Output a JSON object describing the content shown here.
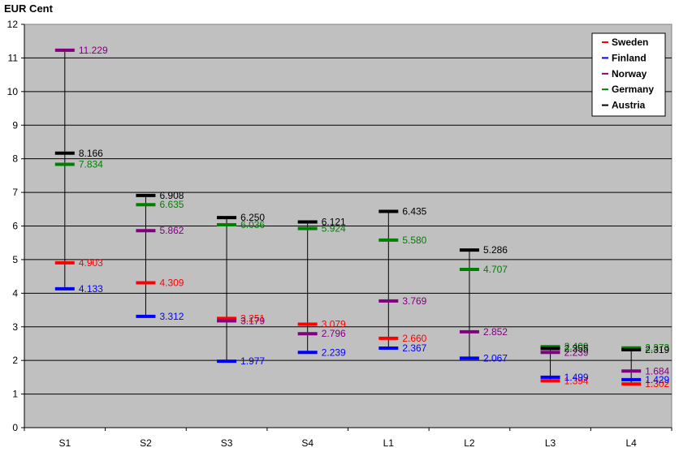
{
  "chart_data": {
    "type": "scatter",
    "ylabel": "EUR Cent",
    "ylim": [
      0,
      12
    ],
    "yticks": [
      "0",
      "1",
      "2",
      "3",
      "4",
      "5",
      "6",
      "7",
      "8",
      "9",
      "10",
      "11",
      "12"
    ],
    "categories": [
      "S1",
      "S2",
      "S3",
      "S4",
      "L1",
      "L2",
      "L3",
      "L4"
    ],
    "grid": true,
    "legend_position": "top-right",
    "series": [
      {
        "name": "Sweden",
        "color": "#ff0000",
        "values": [
          4.903,
          4.309,
          3.251,
          3.079,
          2.66,
          null,
          1.394,
          1.302
        ],
        "labels": [
          "4.903",
          "4.309",
          "3.251",
          "3.079",
          "2.660",
          "",
          "1.394",
          "1.302"
        ]
      },
      {
        "name": "Finland",
        "color": "#0000ff",
        "values": [
          4.133,
          3.312,
          1.977,
          2.239,
          2.367,
          2.067,
          1.499,
          1.429
        ],
        "labels": [
          "4.133",
          "3.312",
          "1.977",
          "2.239",
          "2.367",
          "2.067",
          "1.499",
          "1.429"
        ]
      },
      {
        "name": "Norway",
        "color": "#800080",
        "values": [
          11.229,
          5.862,
          3.179,
          2.796,
          3.769,
          2.852,
          2.239,
          1.684
        ],
        "labels": [
          "11.229",
          "5.862",
          "3.179",
          "2.796",
          "3.769",
          "2.852",
          "2.239",
          "1.684"
        ]
      },
      {
        "name": "Germany",
        "color": "#008000",
        "values": [
          7.834,
          6.635,
          6.036,
          5.924,
          5.58,
          4.707,
          2.409,
          2.373
        ],
        "labels": [
          "7.834",
          "6.635",
          "6.036",
          "5.924",
          "5.580",
          "4.707",
          "2.409",
          "2.373"
        ]
      },
      {
        "name": "Austria",
        "color": "#000000",
        "values": [
          8.166,
          6.908,
          6.25,
          6.121,
          6.435,
          5.286,
          2.355,
          2.319
        ],
        "labels": [
          "8.166",
          "6.908",
          "6.250",
          "6.121",
          "6.435",
          "5.286",
          "2.355",
          "2.319"
        ]
      }
    ]
  },
  "colors": {
    "plot_background": "#c0c0c0",
    "grid": "#000000"
  }
}
